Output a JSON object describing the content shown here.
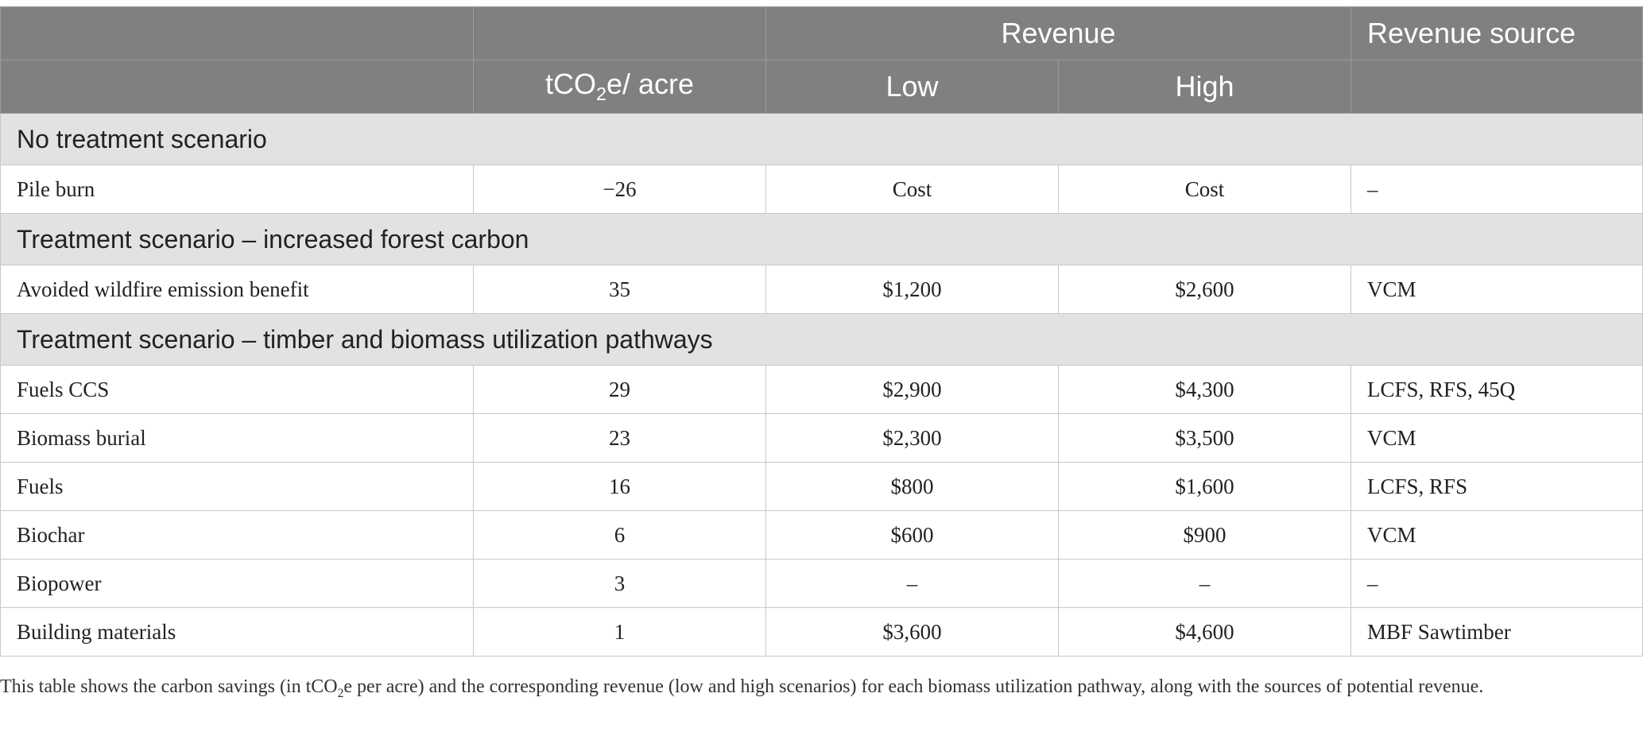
{
  "header": {
    "revenue": "Revenue",
    "revenue_source": "Revenue source",
    "tco2e_prefix": "tCO",
    "tco2e_sub": "2",
    "tco2e_suffix": "e/ acre",
    "low": "Low",
    "high": "High"
  },
  "sections": [
    {
      "title": "No treatment scenario",
      "rows": [
        {
          "name": "Pile burn",
          "tco2e": "−26",
          "low": "Cost",
          "high": "Cost",
          "source": "–"
        }
      ]
    },
    {
      "title": "Treatment scenario – increased forest carbon",
      "rows": [
        {
          "name": "Avoided wildfire emission benefit",
          "tco2e": "35",
          "low": "$1,200",
          "high": "$2,600",
          "source": "VCM"
        }
      ]
    },
    {
      "title": "Treatment scenario – timber and biomass utilization pathways",
      "rows": [
        {
          "name": "Fuels CCS",
          "tco2e": "29",
          "low": "$2,900",
          "high": "$4,300",
          "source": "LCFS, RFS, 45Q"
        },
        {
          "name": "Biomass burial",
          "tco2e": "23",
          "low": "$2,300",
          "high": "$3,500",
          "source": "VCM"
        },
        {
          "name": "Fuels",
          "tco2e": "16",
          "low": "$800",
          "high": "$1,600",
          "source": "LCFS, RFS"
        },
        {
          "name": "Biochar",
          "tco2e": "6",
          "low": "$600",
          "high": "$900",
          "source": "VCM"
        },
        {
          "name": "Biopower",
          "tco2e": "3",
          "low": "–",
          "high": "–",
          "source": "–"
        },
        {
          "name": "Building materials",
          "tco2e": "1",
          "low": "$3,600",
          "high": "$4,600",
          "source": "MBF Sawtimber"
        }
      ]
    }
  ],
  "caption": {
    "before": "This table shows the carbon savings (in tCO",
    "sub": "2",
    "after": "e per acre) and the corresponding revenue (low and high scenarios) for each biomass utilization pathway, along with the sources of potential revenue."
  }
}
